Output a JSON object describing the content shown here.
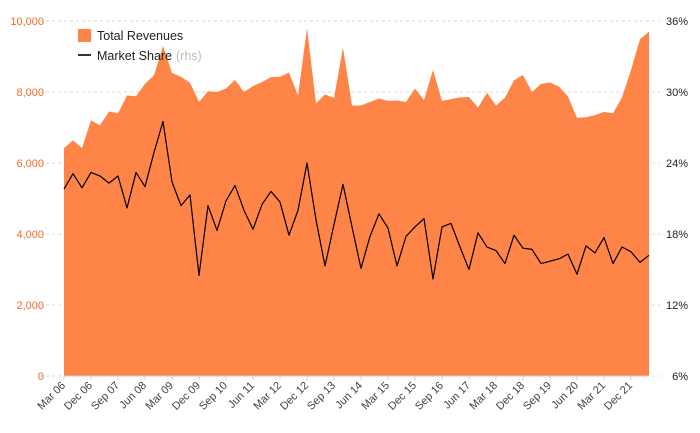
{
  "chart_data": {
    "type": "area",
    "title": "",
    "xlabel": "",
    "ylabel": "",
    "x": [
      "Mar 06",
      "",
      "",
      "Dec 06",
      "",
      "",
      "Sep 07",
      "",
      "",
      "Jun 08",
      "",
      "",
      "Mar 09",
      "",
      "",
      "Dec 09",
      "",
      "",
      "Sep 10",
      "",
      "",
      "Jun 11",
      "",
      "",
      "Mar 12",
      "",
      "",
      "Dec 12",
      "",
      "",
      "Sep 13",
      "",
      "",
      "Jun 14",
      "",
      "",
      "Mar 15",
      "",
      "",
      "Dec 15",
      "",
      "",
      "Sep 16",
      "",
      "",
      "Jun 17",
      "",
      "",
      "Mar 18",
      "",
      "",
      "Dec 18",
      "",
      "",
      "Sep 19",
      "",
      "",
      "Jun 20",
      "",
      "",
      "Mar 21",
      "",
      "",
      "Dec 21",
      "",
      ""
    ],
    "x_tick_labels": [
      "Mar 06",
      "Dec 06",
      "Sep 07",
      "Jun 08",
      "Mar 09",
      "Dec 09",
      "Sep 10",
      "Jun 11",
      "Mar 12",
      "Dec 12",
      "Sep 13",
      "Jun 14",
      "Mar 15",
      "Dec 15",
      "Sep 16",
      "Jun 17",
      "Mar 18",
      "Dec 18",
      "Sep 19",
      "Jun 20",
      "Mar 21",
      "Dec 21"
    ],
    "y_left": {
      "ticks": [
        "0",
        "2,000",
        "4,000",
        "6,000",
        "8,000",
        "10,000"
      ],
      "ylim": [
        0,
        10000
      ]
    },
    "y_right": {
      "ticks": [
        "6%",
        "12%",
        "18%",
        "24%",
        "30%",
        "36%"
      ],
      "ylim": [
        6,
        36
      ]
    },
    "series": [
      {
        "name": "Total Revenues",
        "axis": "left",
        "type": "area",
        "color": "#ff8447",
        "values": [
          6420,
          6640,
          6420,
          7200,
          7060,
          7450,
          7400,
          7900,
          7880,
          8230,
          8470,
          9300,
          8540,
          8430,
          8260,
          7720,
          8020,
          8000,
          8100,
          8340,
          8000,
          8170,
          8280,
          8420,
          8430,
          8550,
          7900,
          9800,
          7680,
          7930,
          7830,
          9250,
          7620,
          7620,
          7720,
          7820,
          7750,
          7760,
          7720,
          8100,
          7770,
          8620,
          7750,
          7800,
          7850,
          7860,
          7560,
          7980,
          7620,
          7840,
          8330,
          8480,
          8000,
          8230,
          8270,
          8150,
          7870,
          7270,
          7290,
          7350,
          7440,
          7400,
          7850,
          8620,
          9490,
          9700
        ]
      },
      {
        "name": "Market Share",
        "name_suffix": "(rhs)",
        "axis": "right",
        "type": "line",
        "color": "#000000",
        "values": [
          21.8,
          23.1,
          21.9,
          23.2,
          22.9,
          22.3,
          22.9,
          20.2,
          23.2,
          22.0,
          24.9,
          27.5,
          22.4,
          20.4,
          21.3,
          14.5,
          20.4,
          18.3,
          20.8,
          22.1,
          20.0,
          18.4,
          20.5,
          21.6,
          20.7,
          17.9,
          20.0,
          24.0,
          19.2,
          15.3,
          18.8,
          22.2,
          18.6,
          15.1,
          17.8,
          19.7,
          18.5,
          15.3,
          17.8,
          18.6,
          19.3,
          14.2,
          18.6,
          18.9,
          16.9,
          15.0,
          18.1,
          16.9,
          16.6,
          15.5,
          17.9,
          16.8,
          16.7,
          15.5,
          15.7,
          15.9,
          16.3,
          14.6,
          17.0,
          16.4,
          17.7,
          15.5,
          16.9,
          16.5,
          15.6,
          16.2
        ]
      }
    ],
    "legend": {
      "placement": "top-left"
    },
    "grid": {
      "horizontal": true,
      "dashed": true
    }
  }
}
